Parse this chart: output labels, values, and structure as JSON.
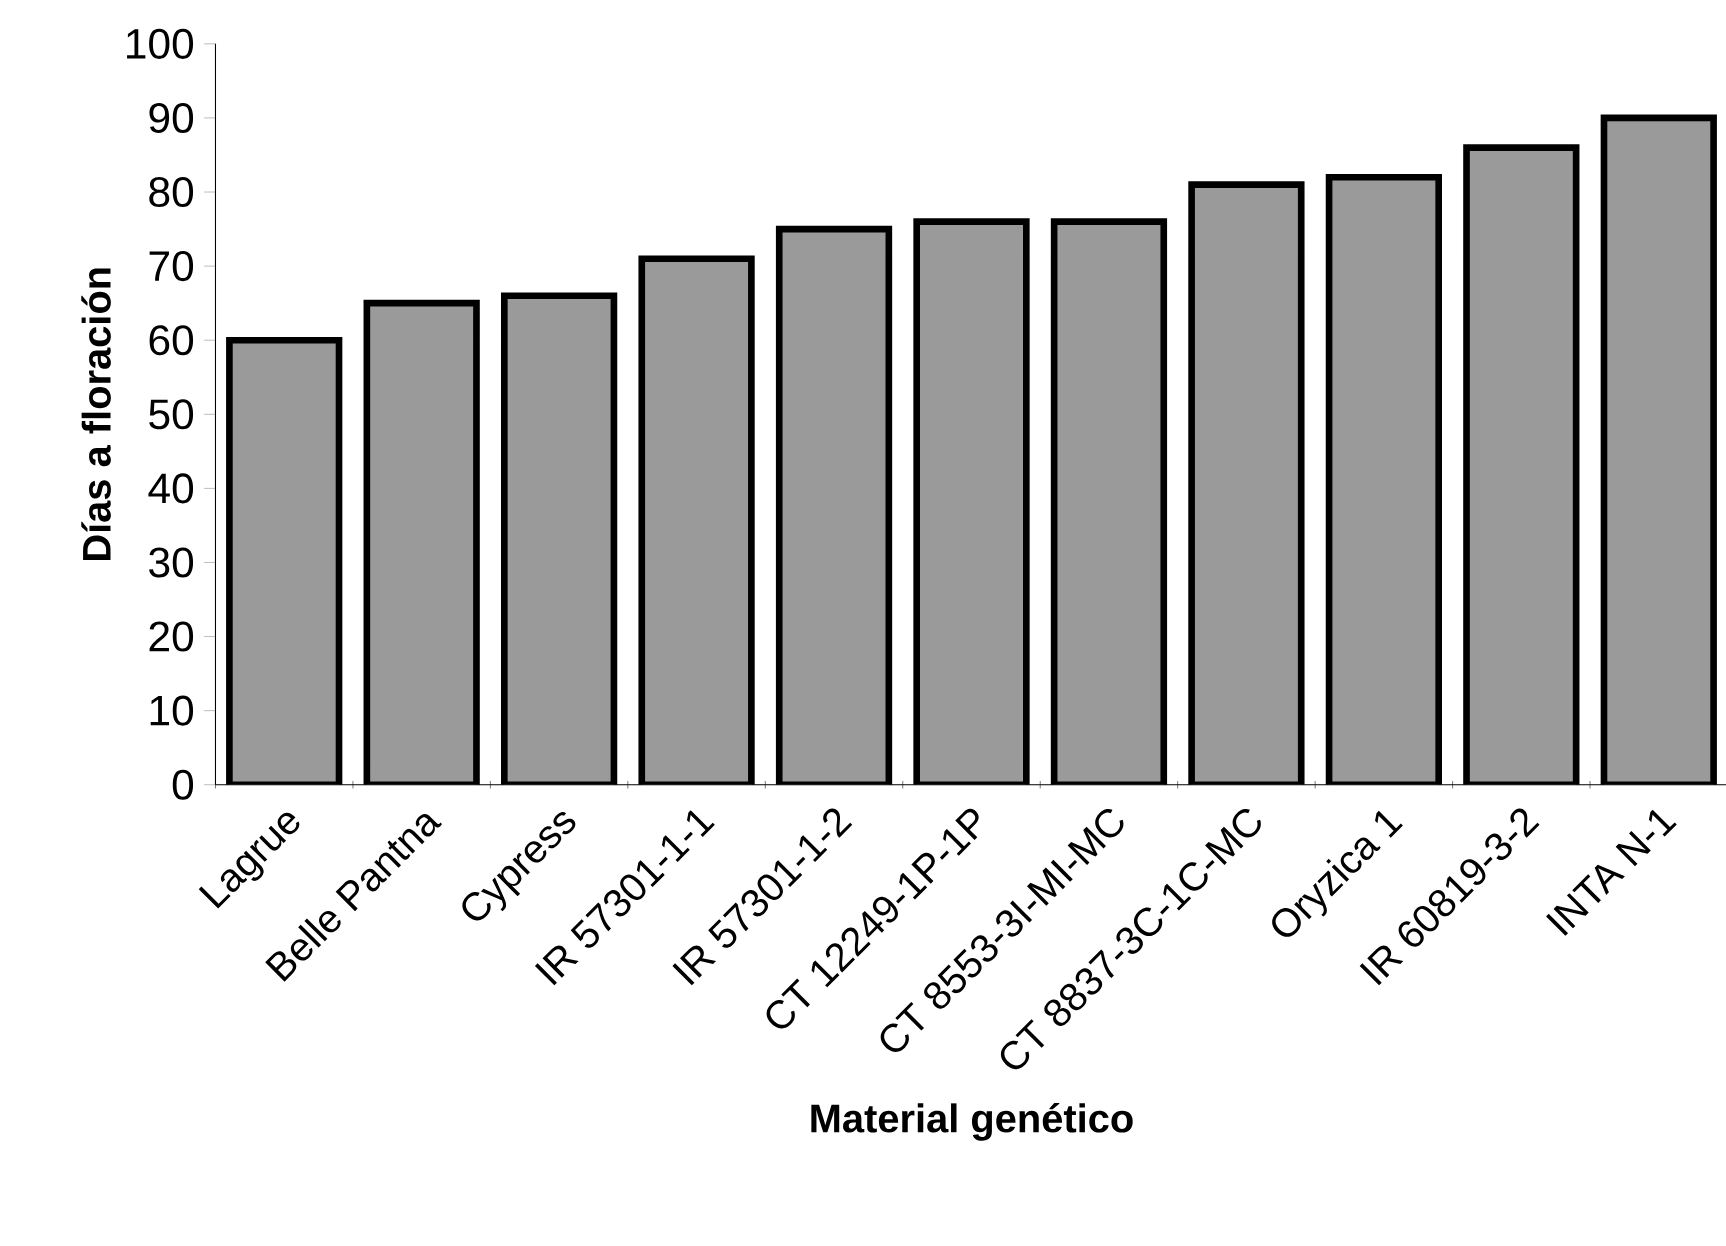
{
  "chart_data": {
    "type": "bar",
    "xlabel": "Material genético",
    "ylabel": "Días a floración",
    "categories": [
      "Lagrue",
      "Belle Pantna",
      "Cypress",
      "IR 57301-1-1",
      "IR 57301-1-2",
      "CT 12249-1P-1P",
      "CT 8553-3I-MI-MC",
      "CT 8837-3C-1C-MC",
      "Oryzica 1",
      "IR 60819-3-2",
      "INTA N-1"
    ],
    "values": [
      60,
      65,
      66,
      71,
      75,
      76,
      76,
      81,
      82,
      86,
      90
    ],
    "color": "#9a9a9a",
    "ylim": [
      0,
      100
    ],
    "yticks": [
      0,
      10,
      20,
      30,
      40,
      50,
      60,
      70,
      80,
      90,
      100
    ]
  }
}
